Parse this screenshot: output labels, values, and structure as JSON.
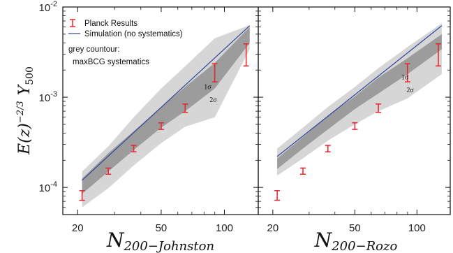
{
  "chart_data": [
    {
      "type": "line",
      "panel": "left",
      "xscale": "log",
      "yscale": "log",
      "xlim": [
        17,
        145
      ],
      "ylim": [
        5e-05,
        0.01
      ],
      "xticks": [
        20,
        50,
        100
      ],
      "xtick_labels": [
        "20",
        "50",
        "100"
      ],
      "yticks": [
        0.0001,
        0.001,
        0.01
      ],
      "ytick_labels": [
        {
          "base": "10",
          "exp": "-4"
        },
        {
          "base": "10",
          "exp": "-3"
        },
        {
          "base": "10",
          "exp": "-2"
        }
      ],
      "xlabel": {
        "main": "N",
        "sub": "200−Johnston"
      },
      "ylabel": {
        "prefix": "E(z)",
        "exp": "−2/3",
        "mid": "Y",
        "sub": "500"
      },
      "legend": {
        "placement": "top-left",
        "entries": [
          "Planck Results",
          "Simulation (no systematics)"
        ],
        "note_lines": [
          "grey countour:",
          "maxBCG systematics"
        ]
      },
      "annotations": [
        "1σ",
        "2σ"
      ],
      "series": [
        {
          "name": "Planck Results",
          "type": "errorbar",
          "color": "#e8232a",
          "x": [
            21,
            28,
            37,
            50,
            65,
            90,
            127
          ],
          "y": [
            8.2e-05,
            0.000152,
            0.00027,
            0.00048,
            0.00076,
            0.0019,
            0.003
          ],
          "ylow": [
            7.2e-05,
            0.00014,
            0.000248,
            0.00044,
            0.00068,
            0.00148,
            0.00222
          ],
          "yhigh": [
            9.2e-05,
            0.000164,
            0.000292,
            0.00052,
            0.00084,
            0.00235,
            0.0039
          ]
        },
        {
          "name": "Simulation (no systematics)",
          "type": "line",
          "color": "#3b4a9c",
          "x": [
            21,
            132
          ],
          "y": [
            0.00012,
            0.0062
          ]
        }
      ],
      "bands": [
        {
          "level": "2σ",
          "color": "#d6d6d6",
          "x": [
            21,
            28,
            37,
            50,
            65,
            90,
            132
          ],
          "lower": [
            6e-05,
            9.8e-05,
            0.000175,
            0.00031,
            0.00047,
            0.0006,
            0.0034
          ],
          "upper": [
            0.00015,
            0.000285,
            0.0006,
            0.00125,
            0.0022,
            0.0045,
            0.0063
          ]
        },
        {
          "level": "1σ",
          "color": "#9c9c9c",
          "x": [
            21,
            28,
            37,
            50,
            65,
            90,
            132
          ],
          "lower": [
            8.5e-05,
            0.00015,
            0.00026,
            0.00046,
            0.0007,
            0.00125,
            0.004
          ],
          "upper": [
            0.000125,
            0.00024,
            0.00042,
            0.00078,
            0.0013,
            0.0024,
            0.006
          ]
        }
      ]
    },
    {
      "type": "line",
      "panel": "right",
      "xscale": "log",
      "yscale": "log",
      "xlim": [
        17,
        145
      ],
      "ylim": [
        5e-05,
        0.01
      ],
      "xticks": [
        20,
        50,
        100
      ],
      "xtick_labels": [
        "20",
        "50",
        "100"
      ],
      "xlabel": {
        "main": "N",
        "sub": "200−Rozo"
      },
      "annotations": [
        "1σ",
        "2σ"
      ],
      "series": [
        {
          "name": "Planck Results",
          "type": "errorbar",
          "color": "#e8232a",
          "x": [
            21,
            28,
            37,
            50,
            65,
            90,
            127
          ],
          "y": [
            8.2e-05,
            0.000152,
            0.00027,
            0.00048,
            0.00076,
            0.0019,
            0.003
          ],
          "ylow": [
            7.2e-05,
            0.00014,
            0.000248,
            0.00044,
            0.00068,
            0.00148,
            0.00222
          ],
          "yhigh": [
            9.2e-05,
            0.000164,
            0.000292,
            0.00052,
            0.00084,
            0.00235,
            0.0039
          ]
        },
        {
          "name": "Simulation (no systematics)",
          "type": "line",
          "color": "#3b4a9c",
          "x": [
            21,
            132
          ],
          "y": [
            0.00022,
            0.0062
          ]
        }
      ],
      "bands": [
        {
          "level": "2σ",
          "color": "#d6d6d6",
          "x": [
            21,
            28,
            37,
            50,
            65,
            90,
            132
          ],
          "lower": [
            0.000135,
            0.00021,
            0.00033,
            0.0005,
            0.0007,
            0.00097,
            0.0018
          ],
          "upper": [
            0.00027,
            0.00046,
            0.00078,
            0.0013,
            0.0021,
            0.0036,
            0.0066
          ]
        },
        {
          "level": "1σ",
          "color": "#9c9c9c",
          "x": [
            21,
            28,
            37,
            50,
            65,
            90,
            132
          ],
          "lower": [
            0.00016,
            0.00027,
            0.00044,
            0.00074,
            0.0011,
            0.0018,
            0.0034
          ],
          "upper": [
            0.00021,
            0.00036,
            0.00062,
            0.00102,
            0.00165,
            0.0027,
            0.005
          ]
        }
      ]
    }
  ]
}
